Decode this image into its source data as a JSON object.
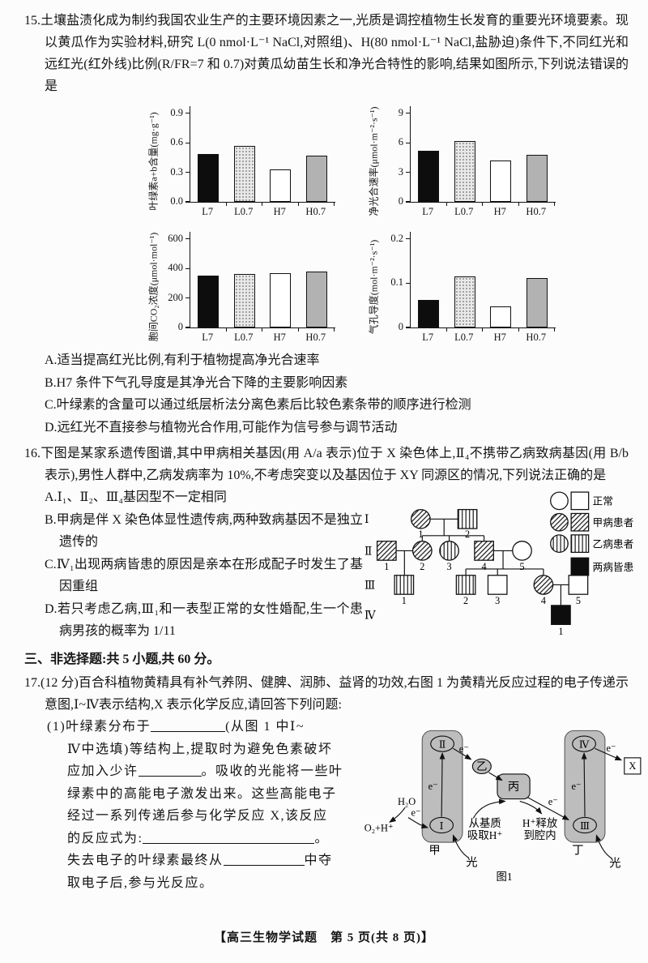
{
  "q15": {
    "number": "15.",
    "stem": "土壤盐渍化成为制约我国农业生产的主要环境因素之一,光质是调控植物生长发育的重要光环境要素。现以黄瓜作为实验材料,研究 L(0 nmol·L⁻¹ NaCl,对照组)、H(80 nmol·L⁻¹ NaCl,盐胁迫)条件下,不同红光和远红光(红外线)比例(R/FR=7 和 0.7)对黄瓜幼苗生长和净光合特性的影响,结果如图所示,下列说法错误的是",
    "options": [
      "A.适当提高红光比例,有利于植物提高净光合速率",
      "B.H7 条件下气孔导度是其净光合下降的主要影响因素",
      "C.叶绿素的含量可以通过纸层析法分离色素后比较色素条带的顺序进行检测",
      "D.远红光不直接参与植物光合作用,可能作为信号参与调节活动"
    ]
  },
  "chart_data": [
    {
      "type": "bar",
      "title": "",
      "xlabel": "",
      "ylabel": "叶绿素a+b含量(mg·g⁻¹)",
      "categories": [
        "L7",
        "L0.7",
        "H7",
        "H0.7"
      ],
      "values": [
        0.49,
        0.57,
        0.33,
        0.47
      ],
      "yticks": [
        0,
        0.3,
        0.6,
        0.9
      ],
      "ytick_labels": [
        "0.0",
        "0.3",
        "0.6",
        "0.9"
      ],
      "ylim": [
        0,
        0.97
      ],
      "bar_styles": [
        "black",
        "dotted",
        "white",
        "gray"
      ],
      "grid": false,
      "legend": "none"
    },
    {
      "type": "bar",
      "title": "",
      "xlabel": "",
      "ylabel": "净光合速率(μmol·m⁻²·s⁻¹)",
      "categories": [
        "L7",
        "L0.7",
        "H7",
        "H0.7"
      ],
      "values": [
        5.2,
        6.2,
        4.2,
        4.8
      ],
      "yticks": [
        0,
        3,
        6,
        9
      ],
      "ytick_labels": [
        "0",
        "3",
        "6",
        "9"
      ],
      "ylim": [
        0,
        9.7
      ],
      "bar_styles": [
        "black",
        "dotted",
        "white",
        "gray"
      ],
      "grid": false,
      "legend": "none"
    },
    {
      "type": "bar",
      "title": "",
      "xlabel": "",
      "ylabel": "胞间CO₂浓度(μmol·mol⁻¹)",
      "categories": [
        "L7",
        "L0.7",
        "H7",
        "H0.7"
      ],
      "values": [
        350,
        365,
        368,
        380
      ],
      "yticks": [
        0,
        200,
        400,
        600
      ],
      "ytick_labels": [
        "0",
        "200",
        "400",
        "600"
      ],
      "ylim": [
        0,
        648
      ],
      "bar_styles": [
        "black",
        "dotted",
        "white",
        "gray"
      ],
      "grid": false,
      "legend": "none"
    },
    {
      "type": "bar",
      "title": "",
      "xlabel": "",
      "ylabel": "气孔导度(mol·m⁻²·s⁻¹)",
      "categories": [
        "L7",
        "L0.7",
        "H7",
        "H0.7"
      ],
      "values": [
        0.062,
        0.115,
        0.048,
        0.112
      ],
      "yticks": [
        0,
        0.1,
        0.2
      ],
      "ytick_labels": [
        "0",
        "0.1",
        "0.2"
      ],
      "ylim": [
        0,
        0.216
      ],
      "bar_styles": [
        "black",
        "dotted",
        "white",
        "gray"
      ],
      "grid": false,
      "legend": "none"
    }
  ],
  "q16": {
    "number": "16.",
    "stem": "下图是某家系遗传图谱,其中甲病相关基因(用 A/a 表示)位于 X 染色体上,Ⅱ₄不携带乙病致病基因(用 B/b 表示),男性人群中,乙病发病率为 10%,不考虑突变以及基因位于 XY 同源区的情况,下列说法正确的是",
    "options": [
      "A.Ⅰ₁、Ⅱ₂、Ⅲ₄基因型不一定相同",
      "B.甲病是伴 X 染色体显性遗传病,两种致病基因不是独立遗传的",
      "C.Ⅳ₁出现两病皆患的原因是亲本在形成配子时发生了基因重组",
      "D.若只考虑乙病,Ⅲ₁和一表型正常的女性婚配,生一个患病男孩的概率为 1/11"
    ]
  },
  "pedigree": {
    "row_labels": [
      "Ⅰ",
      "Ⅱ",
      "Ⅲ",
      "Ⅳ"
    ],
    "numbers": {
      "g1": [
        "1",
        "2"
      ],
      "g2": [
        "1",
        "2",
        "3",
        "4",
        "5"
      ],
      "g3": [
        "1",
        "2",
        "3",
        "4",
        "5"
      ],
      "g4": [
        "1"
      ]
    },
    "legend": [
      {
        "label": "正常"
      },
      {
        "label": "甲病患者"
      },
      {
        "label": "乙病患者"
      },
      {
        "label": "两病皆患"
      }
    ]
  },
  "section3": {
    "heading": "三、非选择题:共 5 小题,共 60 分。"
  },
  "q17": {
    "number": "17.",
    "intro": "(12 分)百合科植物黄精具有补气养阴、健脾、润肺、益肾的功效,右图 1 为黄精光反应过程的电子传递示意图,Ⅰ~Ⅳ表示结构,X 表示化学反应,请回答下列问题:",
    "p1": {
      "l1a": "(1)叶绿素分布于",
      "l1b": "(从图 1 中Ⅰ~",
      "l2": "Ⅳ中选填)等结构上,提取时为避免色素破坏",
      "l3a": "应加入少许",
      "l3b": "。吸收的光能将一些叶",
      "l4": "绿素中的高能电子激发出来。这些高能电子",
      "l5": "经过一系列传递后参与化学反应 X,该反应",
      "l6a": "的反应式为:",
      "l6b": "。",
      "l7a": "失去电子的叶绿素最终从",
      "l7b": "中夺",
      "l8": "取电子后,参与光反应。"
    }
  },
  "fig1": {
    "unit1": "Ⅰ",
    "unit2": "Ⅱ",
    "unit3": "Ⅲ",
    "unit4": "Ⅳ",
    "node_yi": "乙",
    "node_bing": "丙",
    "label_jia": "甲",
    "label_ding": "丁",
    "x_box": "X",
    "e": "e⁻",
    "h2o": "H₂O",
    "o2": "O₂+H⁺",
    "absorb_line1": "从基质",
    "absorb_line2": "吸取H⁺",
    "release_line1": "H⁺释放",
    "release_line2": "到腔内",
    "light": "光",
    "caption": "图1"
  },
  "page": {
    "footer": "【高三生物学试题　第 5 页(共 8 页)】"
  }
}
